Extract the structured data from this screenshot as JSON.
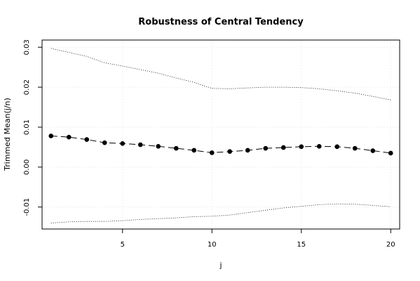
{
  "chart_data": {
    "type": "line",
    "title": "Robustness of Central Tendency",
    "xlabel": "j",
    "ylabel": "Trimmed Mean(j/n)",
    "xlim": [
      0.5,
      20.5
    ],
    "ylim": [
      -0.0155,
      0.0318
    ],
    "x_ticks": [
      5,
      10,
      15,
      20
    ],
    "y_ticks": [
      -0.01,
      0.0,
      0.01,
      0.02,
      0.03
    ],
    "x_tick_labels": [
      "5",
      "10",
      "15",
      "20"
    ],
    "y_tick_labels": [
      "-0.01",
      "0.00",
      "0.01",
      "0.02",
      "0.03"
    ],
    "grid": true,
    "x": [
      1,
      2,
      3,
      4,
      5,
      6,
      7,
      8,
      9,
      10,
      11,
      12,
      13,
      14,
      15,
      16,
      17,
      18,
      19,
      20
    ],
    "series": [
      {
        "role": "estimate",
        "values": [
          0.0078,
          0.0075,
          0.0069,
          0.0061,
          0.0059,
          0.0056,
          0.0052,
          0.0047,
          0.0042,
          0.0036,
          0.0039,
          0.0042,
          0.0047,
          0.0049,
          0.0051,
          0.0052,
          0.0051,
          0.0047,
          0.0041,
          0.0035
        ],
        "style": "dashed-with-points",
        "color": "#000000"
      },
      {
        "role": "upper-band",
        "values": [
          0.0297,
          0.0287,
          0.0277,
          0.0261,
          0.0253,
          0.0244,
          0.0235,
          0.0223,
          0.0212,
          0.0197,
          0.0196,
          0.0198,
          0.02,
          0.02,
          0.0199,
          0.0196,
          0.0191,
          0.0185,
          0.0177,
          0.0168
        ],
        "style": "dotted",
        "color": "#000000"
      },
      {
        "role": "lower-band",
        "values": [
          -0.014,
          -0.0137,
          -0.0136,
          -0.0136,
          -0.0134,
          -0.0131,
          -0.0129,
          -0.0127,
          -0.0124,
          -0.0123,
          -0.012,
          -0.0114,
          -0.0108,
          -0.0102,
          -0.0098,
          -0.0094,
          -0.0092,
          -0.0093,
          -0.0096,
          -0.0099
        ],
        "style": "dotted",
        "color": "#000000"
      }
    ]
  }
}
